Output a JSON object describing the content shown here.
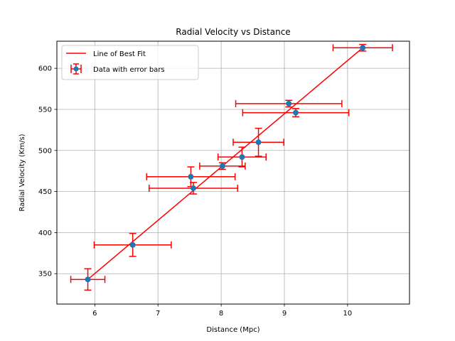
{
  "chart_data": {
    "type": "scatter",
    "title": "Radial Velocity vs Distance",
    "xlabel": "Distance (Mpc)",
    "ylabel": "Radial Velocity (Km/s)",
    "xlim": [
      5.4,
      10.98
    ],
    "ylim": [
      313,
      633
    ],
    "xticks": [
      6,
      7,
      8,
      9,
      10
    ],
    "yticks": [
      350,
      400,
      450,
      500,
      550,
      600
    ],
    "grid": true,
    "legend_position": "top-left",
    "colors": {
      "points": "#1f77b4",
      "error_bars": "#ff0000",
      "fit_line": "#ff0000",
      "grid": "#b0b0b0"
    },
    "series": [
      {
        "name": "Data with error bars",
        "points": [
          {
            "x": 5.89,
            "y": 343,
            "xerr": 0.27,
            "yerr": 13
          },
          {
            "x": 6.6,
            "y": 385,
            "xerr": 0.61,
            "yerr": 14
          },
          {
            "x": 7.52,
            "y": 468,
            "xerr": 0.7,
            "yerr": 12
          },
          {
            "x": 7.56,
            "y": 454,
            "xerr": 0.7,
            "yerr": 7
          },
          {
            "x": 8.02,
            "y": 481,
            "xerr": 0.36,
            "yerr": 4
          },
          {
            "x": 8.33,
            "y": 492,
            "xerr": 0.38,
            "yerr": 12
          },
          {
            "x": 8.59,
            "y": 510,
            "xerr": 0.4,
            "yerr": 17
          },
          {
            "x": 9.07,
            "y": 557,
            "xerr": 0.84,
            "yerr": 4
          },
          {
            "x": 9.18,
            "y": 546,
            "xerr": 0.84,
            "yerr": 5
          },
          {
            "x": 10.24,
            "y": 625,
            "xerr": 0.47,
            "yerr": 4
          }
        ]
      },
      {
        "name": "Line of Best Fit",
        "line": {
          "x": [
            5.89,
            10.24
          ],
          "y": [
            343,
            625
          ]
        }
      }
    ]
  }
}
